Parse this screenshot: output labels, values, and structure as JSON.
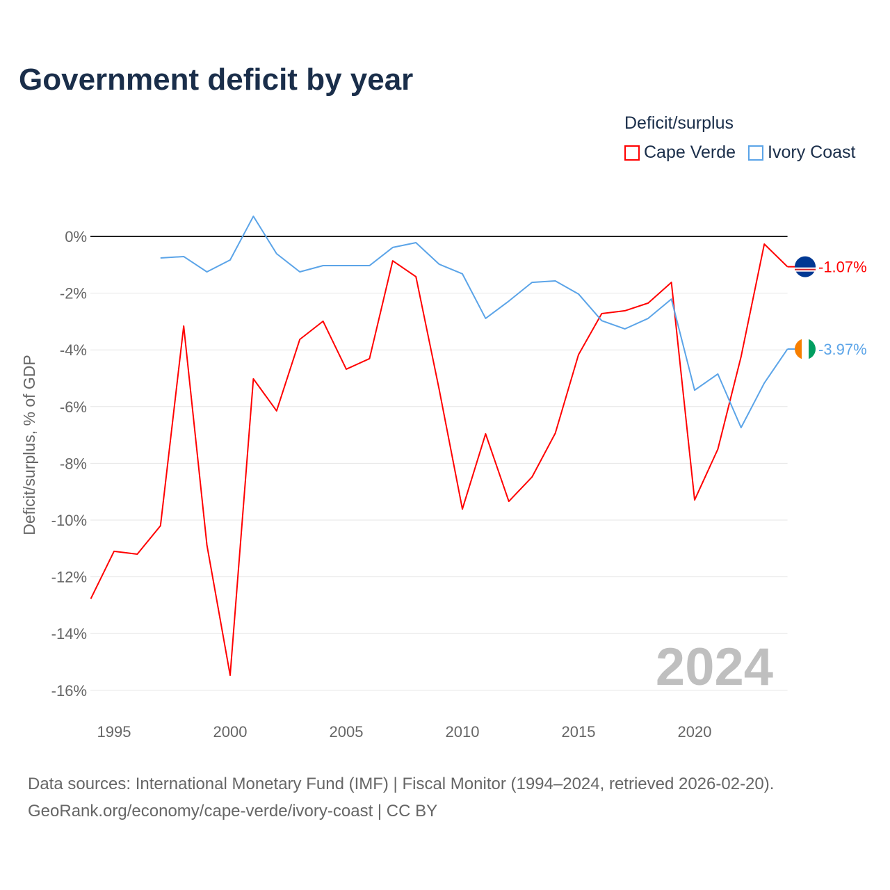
{
  "title": "Government deficit by year",
  "legend": {
    "title": "Deficit/surplus",
    "items": [
      {
        "label": "Cape Verde",
        "color": "#ff0000"
      },
      {
        "label": "Ivory Coast",
        "color": "#5ba4e8"
      }
    ]
  },
  "year_watermark": "2024",
  "sources": {
    "line1": "Data sources: International Monetary Fund (IMF) | Fiscal Monitor (1994–2024, retrieved 2026-02-20).",
    "line2": "GeoRank.org/economy/cape-verde/ivory-coast | CC BY"
  },
  "chart_data": {
    "type": "line",
    "ylabel": "Deficit/surplus, % of GDP",
    "xlabel": "",
    "xlim": [
      1994,
      2024
    ],
    "ylim": [
      -16.5,
      1
    ],
    "grid": true,
    "legend_position": "top-right",
    "x_ticks": [
      1995,
      2000,
      2005,
      2010,
      2015,
      2020
    ],
    "x_tick_labels": [
      "1995",
      "2000",
      "2005",
      "2010",
      "2015",
      "2020"
    ],
    "y_ticks": [
      0,
      -2,
      -4,
      -6,
      -8,
      -10,
      -12,
      -14,
      -16
    ],
    "y_tick_labels": [
      "0%",
      "-2%",
      "-4%",
      "-6%",
      "-8%",
      "-10%",
      "-12%",
      "-14%",
      "-16%"
    ],
    "series": [
      {
        "name": "Cape Verde",
        "color": "#ff0000",
        "end_label": "-1.07%",
        "flag": "cape-verde",
        "x": [
          1994,
          1995,
          1996,
          1997,
          1998,
          1999,
          2000,
          2001,
          2002,
          2003,
          2004,
          2005,
          2006,
          2007,
          2008,
          2009,
          2010,
          2011,
          2012,
          2013,
          2014,
          2015,
          2016,
          2017,
          2018,
          2019,
          2020,
          2021,
          2022,
          2023,
          2024
        ],
        "values": [
          -12.77,
          -11.1,
          -11.2,
          -10.2,
          -3.16,
          -10.88,
          -15.47,
          -5.02,
          -6.15,
          -3.63,
          -2.99,
          -4.68,
          -4.31,
          -0.86,
          -1.42,
          -5.39,
          -9.61,
          -6.96,
          -9.34,
          -8.48,
          -6.94,
          -4.17,
          -2.72,
          -2.62,
          -2.35,
          -1.62,
          -9.29,
          -7.5,
          -4.24,
          -0.27,
          -1.07
        ]
      },
      {
        "name": "Ivory Coast",
        "color": "#5ba4e8",
        "end_label": "-3.97%",
        "flag": "ivory-coast",
        "x": [
          1997,
          1998,
          1999,
          2000,
          2001,
          2002,
          2003,
          2004,
          2005,
          2006,
          2007,
          2008,
          2009,
          2010,
          2011,
          2012,
          2013,
          2014,
          2015,
          2016,
          2017,
          2018,
          2019,
          2020,
          2021,
          2022,
          2023,
          2024
        ],
        "values": [
          -0.76,
          -0.71,
          -1.25,
          -0.83,
          0.71,
          -0.61,
          -1.25,
          -1.03,
          -1.03,
          -1.03,
          -0.39,
          -0.22,
          -0.98,
          -1.32,
          -2.89,
          -2.28,
          -1.62,
          -1.57,
          -2.03,
          -2.97,
          -3.26,
          -2.89,
          -2.21,
          -5.42,
          -4.85,
          -6.74,
          -5.17,
          -3.97
        ]
      }
    ]
  }
}
